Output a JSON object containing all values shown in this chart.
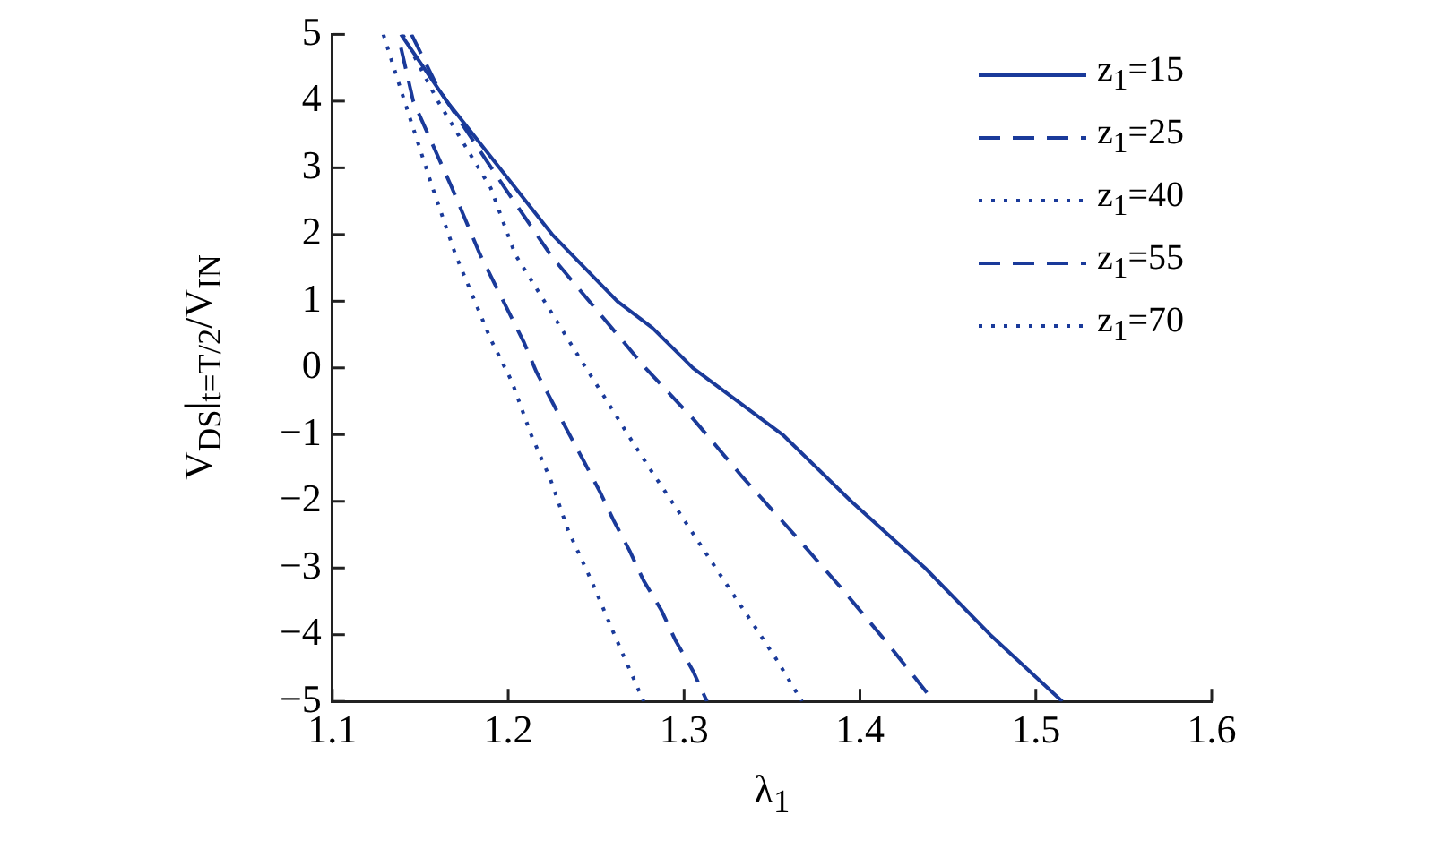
{
  "chart_data": {
    "type": "line",
    "xlabel": "λ$_{1}$",
    "ylabel": "V$_{DS}$|$_{t=T/2}$/V$_{IN}$",
    "xlim": [
      1.1,
      1.6
    ],
    "xticks": [
      1.1,
      1.2,
      1.3,
      1.4,
      1.5,
      1.6
    ],
    "ylim": [
      -5,
      5
    ],
    "yticks": [
      -5,
      -4,
      -3,
      -2,
      -1,
      0,
      1,
      2,
      3,
      4,
      5
    ],
    "grid": false,
    "legend": "top right",
    "marker": "none",
    "series": [
      {
        "name": "z$_{1}$=15",
        "color": "#1a3a9a",
        "line_style": "solid",
        "x": [
          1.139,
          1.165,
          1.195,
          1.225,
          1.262,
          1.282,
          1.305,
          1.356,
          1.395,
          1.437,
          1.474,
          1.515
        ],
        "values": [
          5,
          4,
          3,
          2,
          1,
          0.6,
          0,
          -1,
          -2,
          -3,
          -4,
          -5
        ]
      },
      {
        "name": "z$_{1}$=25",
        "color": "#1a3a9a",
        "line_style": "dashed",
        "x": [
          1.145,
          1.16,
          1.198,
          1.225,
          1.278,
          1.306,
          1.333,
          1.361,
          1.389,
          1.416,
          1.442
        ],
        "values": [
          5,
          4.2,
          2.7,
          1.66,
          0,
          -0.79,
          -1.63,
          -2.45,
          -3.29,
          -4.14,
          -5
        ]
      },
      {
        "name": "z$_{1}$=40",
        "color": "#1a3a9a",
        "line_style": "dotted",
        "x": [
          1.14,
          1.16,
          1.19,
          1.204,
          1.242,
          1.256,
          1.269,
          1.283,
          1.297,
          1.311,
          1.325,
          1.339,
          1.353,
          1.367
        ],
        "values": [
          5,
          4,
          2.7,
          1.7,
          0.09,
          -0.49,
          -1.04,
          -1.61,
          -2.16,
          -2.72,
          -3.28,
          -3.83,
          -4.39,
          -5
        ]
      },
      {
        "name": "z$_{1}$=55",
        "color": "#1a3a9a",
        "line_style": "dashed",
        "x": [
          1.139,
          1.146,
          1.168,
          1.184,
          1.209,
          1.216,
          1.225,
          1.234,
          1.243,
          1.252,
          1.26,
          1.269,
          1.277,
          1.287,
          1.295,
          1.305,
          1.313
        ],
        "values": [
          4.8,
          4,
          2.7,
          1.7,
          0.38,
          -0.06,
          -0.51,
          -0.96,
          -1.4,
          -1.85,
          -2.29,
          -2.74,
          -3.19,
          -3.63,
          -4.08,
          -4.54,
          -5
        ]
      },
      {
        "name": "z$_{1}$=70",
        "color": "#1a3a9a",
        "line_style": "dotted",
        "x": [
          1.129,
          1.141,
          1.157,
          1.17,
          1.19,
          1.202,
          1.213,
          1.224,
          1.234,
          1.248,
          1.261,
          1.277
        ],
        "values": [
          5,
          4,
          2.7,
          1.7,
          0.43,
          -0.2,
          -1,
          -1.67,
          -2.43,
          -3.23,
          -4.04,
          -5
        ]
      }
    ]
  }
}
